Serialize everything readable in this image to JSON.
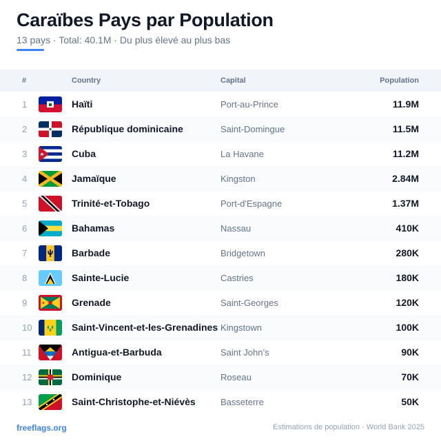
{
  "header": {
    "title": "Caraïbes Pays par Population",
    "subtitle": "13 pays · Total: 40.1M · Du plus élevé au plus bas"
  },
  "columns": {
    "rank": "#",
    "country": "Country",
    "capital": "Capital",
    "population": "Population"
  },
  "rows": [
    {
      "rank": "1",
      "country": "Haïti",
      "capital": "Port-au-Prince",
      "population": "11.9M",
      "flag": "haiti-flag-icon"
    },
    {
      "rank": "2",
      "country": "République dominicaine",
      "capital": "Saint-Domingue",
      "population": "11.5M",
      "flag": "dominican-republic-flag-icon"
    },
    {
      "rank": "3",
      "country": "Cuba",
      "capital": "La Havane",
      "population": "11.2M",
      "flag": "cuba-flag-icon"
    },
    {
      "rank": "4",
      "country": "Jamaïque",
      "capital": "Kingston",
      "population": "2.84M",
      "flag": "jamaica-flag-icon"
    },
    {
      "rank": "5",
      "country": "Trinité-et-Tobago",
      "capital": "Port-d'Espagne",
      "population": "1.37M",
      "flag": "trinidad-tobago-flag-icon"
    },
    {
      "rank": "6",
      "country": "Bahamas",
      "capital": "Nassau",
      "population": "410K",
      "flag": "bahamas-flag-icon"
    },
    {
      "rank": "7",
      "country": "Barbade",
      "capital": "Bridgetown",
      "population": "280K",
      "flag": "barbados-flag-icon"
    },
    {
      "rank": "8",
      "country": "Sainte-Lucie",
      "capital": "Castries",
      "population": "180K",
      "flag": "saint-lucia-flag-icon"
    },
    {
      "rank": "9",
      "country": "Grenade",
      "capital": "Saint-Georges",
      "population": "120K",
      "flag": "grenada-flag-icon"
    },
    {
      "rank": "10",
      "country": "Saint-Vincent-et-les-Grenadines",
      "capital": "Kingstown",
      "population": "100K",
      "flag": "saint-vincent-flag-icon"
    },
    {
      "rank": "11",
      "country": "Antigua-et-Barbuda",
      "capital": "Saint John’s",
      "population": "90K",
      "flag": "antigua-barbuda-flag-icon"
    },
    {
      "rank": "12",
      "country": "Dominique",
      "capital": "Roseau",
      "population": "70K",
      "flag": "dominica-flag-icon"
    },
    {
      "rank": "13",
      "country": "Saint-Christophe-et-Niévès",
      "capital": "Basseterre",
      "population": "50K",
      "flag": "saint-kitts-nevis-flag-icon"
    }
  ],
  "footer": {
    "source_link": "freeflags.org",
    "note": "Estimations de population · World Bank 2025"
  },
  "colors": {
    "accent": "#3b82f6",
    "header_bg": "#f1f5f9",
    "alt_row_bg": "#f8fafc"
  }
}
